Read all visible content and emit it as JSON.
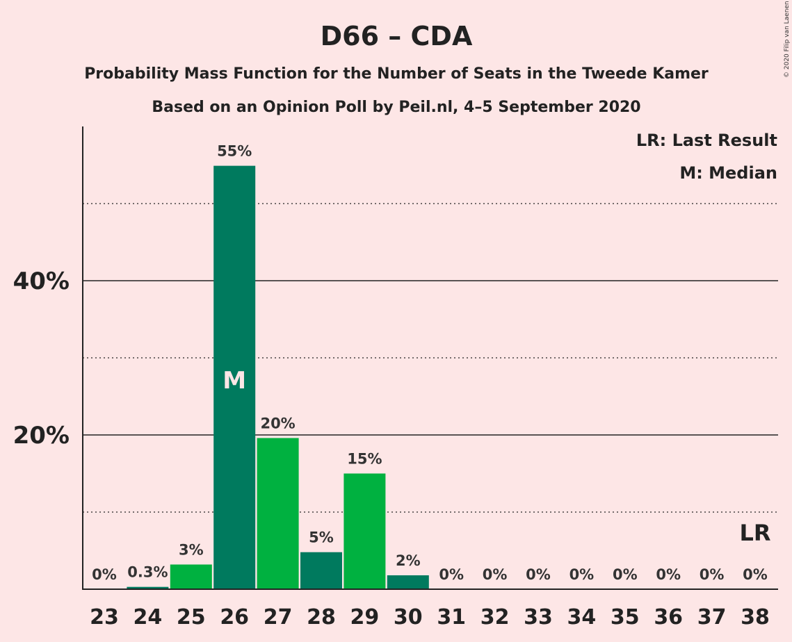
{
  "chart_data": {
    "type": "bar",
    "title": "D66 – CDA",
    "subtitle_1": "Probability Mass Function for the Number of Seats in the Tweede Kamer",
    "subtitle_2": "Based on an Opinion Poll by Peil.nl, 4–5 September 2020",
    "copyright": "© 2020 Filip van Laenen",
    "legend": {
      "last_result": "LR: Last Result",
      "median": "M: Median",
      "placement": "top-right"
    },
    "xlabel": "",
    "ylabel": "",
    "ylim": [
      0,
      0.6
    ],
    "yticks": [
      {
        "value": 0.2,
        "label": "20%"
      },
      {
        "value": 0.4,
        "label": "40%"
      }
    ],
    "minor_gridlines": [
      0.1,
      0.3,
      0.5
    ],
    "categories": [
      "23",
      "24",
      "25",
      "26",
      "27",
      "28",
      "29",
      "30",
      "31",
      "32",
      "33",
      "34",
      "35",
      "36",
      "37",
      "38"
    ],
    "values": [
      0,
      0.003,
      0.032,
      0.549,
      0.196,
      0.048,
      0.15,
      0.018,
      0,
      0,
      0,
      0,
      0,
      0,
      0,
      0
    ],
    "data_labels": [
      "0%",
      "0.3%",
      "3%",
      "55%",
      "20%",
      "5%",
      "15%",
      "2%",
      "0%",
      "0%",
      "0%",
      "0%",
      "0%",
      "0%",
      "0%",
      "0%"
    ],
    "median_category": "26",
    "median_marker": "M",
    "last_result_category": "38",
    "last_result_marker": "LR",
    "colors": {
      "background": "#FDE6E6",
      "bar_light": "#00B140",
      "bar_dark": "#007A5E",
      "text": "#222222"
    },
    "bar_color_pattern": [
      "light",
      "dark"
    ]
  }
}
